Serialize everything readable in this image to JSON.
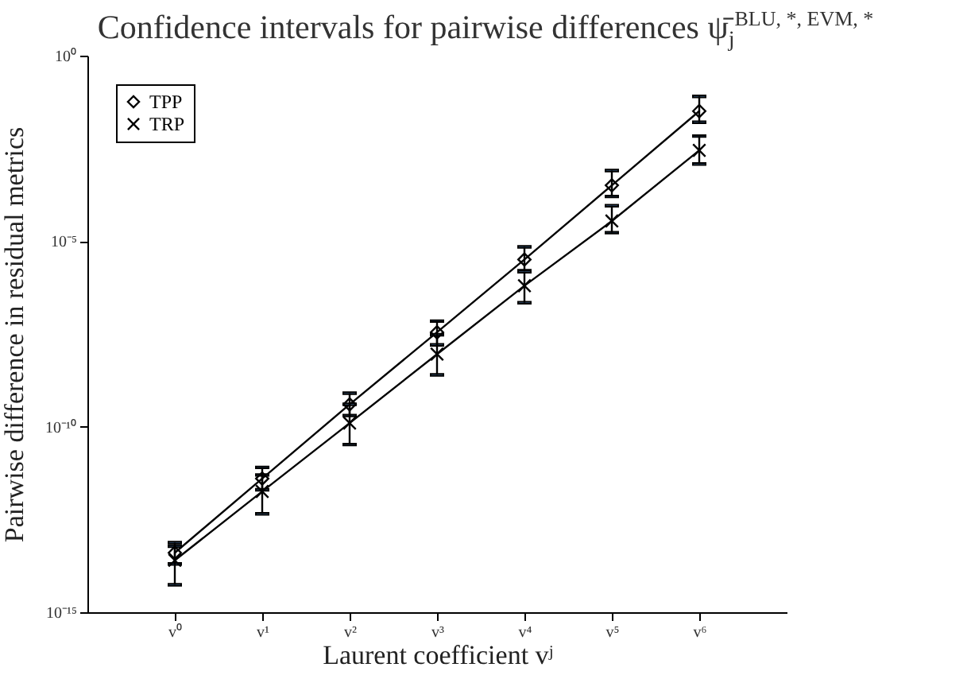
{
  "chart_data": {
    "type": "line",
    "title": "Confidence intervals for pairwise differences ψ̄$_{j}$$^{BLU, *, EVM, *}$",
    "xlabel": "Laurent coefficient vʲ",
    "ylabel": "Pairwise difference in residual metrics",
    "categories": [
      "v⁰",
      "v¹",
      "v²",
      "v³",
      "v⁴",
      "v⁵",
      "v⁶"
    ],
    "series": [
      {
        "name": "TPP",
        "color": "#000000",
        "marker": "diamond",
        "values": [
          4e-14,
          4e-12,
          4e-10,
          3.5e-08,
          3.2e-06,
          0.00032,
          0.032
        ],
        "errors": [
          [
            2e-14,
            7.5e-14
          ],
          [
            2e-12,
            8e-12
          ],
          [
            2e-10,
            8e-10
          ],
          [
            1.6e-08,
            7e-08
          ],
          [
            1.6e-06,
            7e-06
          ],
          [
            0.00016,
            0.0008
          ],
          [
            0.016,
            0.08
          ]
        ]
      },
      {
        "name": "TRP",
        "color": "#000000",
        "marker": "cross",
        "values": [
          2.5e-14,
          1.8e-12,
          1.25e-10,
          9e-09,
          6.3e-07,
          3.5e-05,
          0.0028
        ],
        "errors": [
          [
            5.5e-15,
            6e-14
          ],
          [
            4.5e-13,
            5e-12
          ],
          [
            3.3e-11,
            4e-10
          ],
          [
            2.5e-09,
            3e-08
          ],
          [
            2.2e-07,
            1.5e-06
          ],
          [
            1.7e-05,
            9e-05
          ],
          [
            0.0012,
            0.0068
          ]
        ]
      }
    ],
    "log": "y",
    "ylim": [
      1e-15,
      1
    ],
    "yticks": [
      {
        "value": 1e-15,
        "label": "10⁻¹⁵"
      },
      {
        "value": 1e-10,
        "label": "10⁻¹⁰"
      },
      {
        "value": 1e-05,
        "label": "10⁻⁵"
      },
      {
        "value": 1,
        "label": "10⁰"
      }
    ],
    "legend": "top left"
  }
}
